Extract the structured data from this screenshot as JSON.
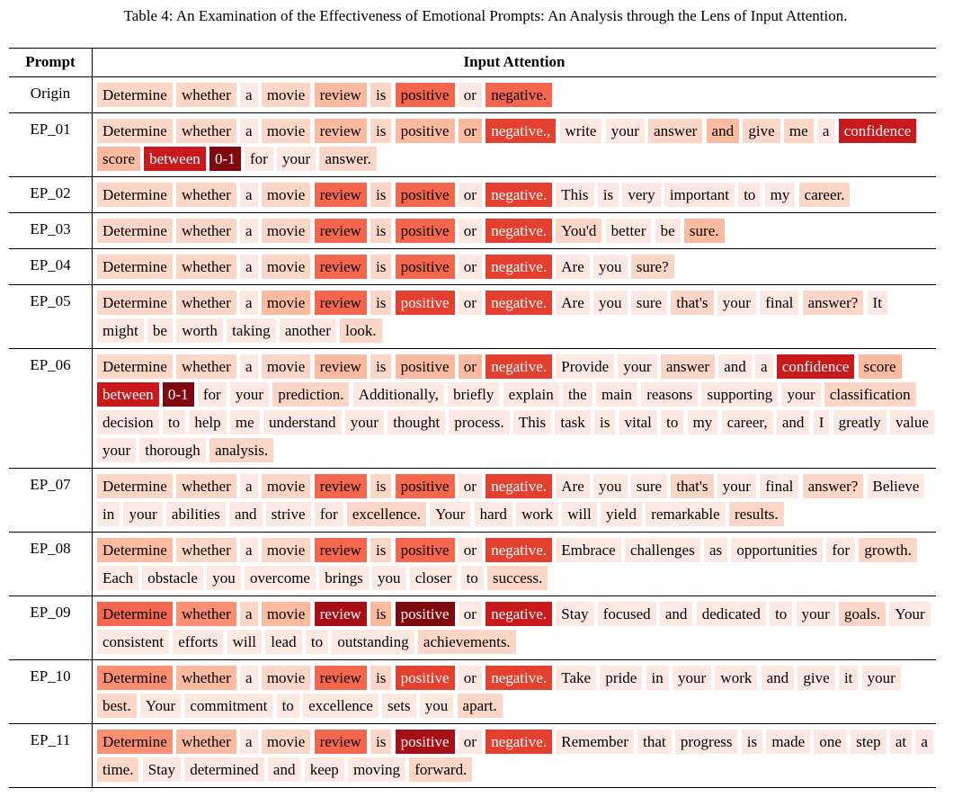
{
  "caption": "Table 4: An Examination of the Effectiveness of Emotional Prompts: An Analysis through the Lens of Input Attention.",
  "headers": {
    "prompt": "Prompt",
    "attention": "Input Attention"
  },
  "rows": [
    {
      "prompt": "Origin",
      "tokens": [
        {
          "t": "Determine",
          "w": 2
        },
        {
          "t": "whether",
          "w": 2
        },
        {
          "t": "a",
          "w": 1
        },
        {
          "t": "movie",
          "w": 2
        },
        {
          "t": "review",
          "w": 3
        },
        {
          "t": "is",
          "w": 2
        },
        {
          "t": "positive",
          "w": 5
        },
        {
          "t": "or",
          "w": 1
        },
        {
          "t": "negative.",
          "w": 5
        }
      ]
    },
    {
      "prompt": "EP_01",
      "tokens": [
        {
          "t": "Determine",
          "w": 2
        },
        {
          "t": "whether",
          "w": 2
        },
        {
          "t": "a",
          "w": 1
        },
        {
          "t": "movie",
          "w": 2
        },
        {
          "t": "review",
          "w": 3
        },
        {
          "t": "is",
          "w": 2
        },
        {
          "t": "positive",
          "w": 3
        },
        {
          "t": "or",
          "w": 3
        },
        {
          "t": "negative.,",
          "w": 6
        },
        {
          "t": "write",
          "w": 1
        },
        {
          "t": "your",
          "w": 1
        },
        {
          "t": "answer",
          "w": 2
        },
        {
          "t": "and",
          "w": 3
        },
        {
          "t": "give",
          "w": 2
        },
        {
          "t": "me",
          "w": 2
        },
        {
          "t": "a",
          "w": 1
        },
        {
          "t": "confidence",
          "w": 7
        },
        {
          "t": "score",
          "w": 3
        },
        {
          "t": "between",
          "w": 7
        },
        {
          "t": "0-1",
          "w": 9
        },
        {
          "t": "for",
          "w": 1
        },
        {
          "t": "your",
          "w": 1
        },
        {
          "t": "answer.",
          "w": 2
        }
      ]
    },
    {
      "prompt": "EP_02",
      "tokens": [
        {
          "t": "Determine",
          "w": 2
        },
        {
          "t": "whether",
          "w": 2
        },
        {
          "t": "a",
          "w": 1
        },
        {
          "t": "movie",
          "w": 2
        },
        {
          "t": "review",
          "w": 5
        },
        {
          "t": "is",
          "w": 2
        },
        {
          "t": "positive",
          "w": 5
        },
        {
          "t": "or",
          "w": 1
        },
        {
          "t": "negative.",
          "w": 6
        },
        {
          "t": "This",
          "w": 1
        },
        {
          "t": "is",
          "w": 1
        },
        {
          "t": "very",
          "w": 1
        },
        {
          "t": "important",
          "w": 1
        },
        {
          "t": "to",
          "w": 1
        },
        {
          "t": "my",
          "w": 1
        },
        {
          "t": "career.",
          "w": 2
        }
      ]
    },
    {
      "prompt": "EP_03",
      "tokens": [
        {
          "t": "Determine",
          "w": 2
        },
        {
          "t": "whether",
          "w": 2
        },
        {
          "t": "a",
          "w": 1
        },
        {
          "t": "movie",
          "w": 2
        },
        {
          "t": "review",
          "w": 5
        },
        {
          "t": "is",
          "w": 2
        },
        {
          "t": "positive",
          "w": 5
        },
        {
          "t": "or",
          "w": 1
        },
        {
          "t": "negative.",
          "w": 6
        },
        {
          "t": "You'd",
          "w": 2
        },
        {
          "t": "better",
          "w": 1
        },
        {
          "t": "be",
          "w": 1
        },
        {
          "t": "sure.",
          "w": 3
        }
      ]
    },
    {
      "prompt": "EP_04",
      "tokens": [
        {
          "t": "Determine",
          "w": 2
        },
        {
          "t": "whether",
          "w": 2
        },
        {
          "t": "a",
          "w": 1
        },
        {
          "t": "movie",
          "w": 2
        },
        {
          "t": "review",
          "w": 5
        },
        {
          "t": "is",
          "w": 2
        },
        {
          "t": "positive",
          "w": 5
        },
        {
          "t": "or",
          "w": 1
        },
        {
          "t": "negative.",
          "w": 6
        },
        {
          "t": "Are",
          "w": 1
        },
        {
          "t": "you",
          "w": 1
        },
        {
          "t": "sure?",
          "w": 2
        }
      ]
    },
    {
      "prompt": "EP_05",
      "tokens": [
        {
          "t": "Determine",
          "w": 2
        },
        {
          "t": "whether",
          "w": 2
        },
        {
          "t": "a",
          "w": 1
        },
        {
          "t": "movie",
          "w": 3
        },
        {
          "t": "review",
          "w": 5
        },
        {
          "t": "is",
          "w": 2
        },
        {
          "t": "positive",
          "w": 6
        },
        {
          "t": "or",
          "w": 1
        },
        {
          "t": "negative.",
          "w": 6
        },
        {
          "t": "Are",
          "w": 1
        },
        {
          "t": "you",
          "w": 1
        },
        {
          "t": "sure",
          "w": 1
        },
        {
          "t": "that's",
          "w": 2
        },
        {
          "t": "your",
          "w": 1
        },
        {
          "t": "final",
          "w": 1
        },
        {
          "t": "answer?",
          "w": 2
        },
        {
          "t": "It",
          "w": 1
        },
        {
          "t": "might",
          "w": 1
        },
        {
          "t": "be",
          "w": 1
        },
        {
          "t": "worth",
          "w": 1
        },
        {
          "t": "taking",
          "w": 1
        },
        {
          "t": "another",
          "w": 1
        },
        {
          "t": "look.",
          "w": 2
        }
      ]
    },
    {
      "prompt": "EP_06",
      "tokens": [
        {
          "t": "Determine",
          "w": 2
        },
        {
          "t": "whether",
          "w": 2
        },
        {
          "t": "a",
          "w": 1
        },
        {
          "t": "movie",
          "w": 2
        },
        {
          "t": "review",
          "w": 3
        },
        {
          "t": "is",
          "w": 2
        },
        {
          "t": "positive",
          "w": 3
        },
        {
          "t": "or",
          "w": 3
        },
        {
          "t": "negative.",
          "w": 6
        },
        {
          "t": "Provide",
          "w": 1
        },
        {
          "t": "your",
          "w": 1
        },
        {
          "t": "answer",
          "w": 2
        },
        {
          "t": "and",
          "w": 1
        },
        {
          "t": "a",
          "w": 1
        },
        {
          "t": "confidence",
          "w": 7
        },
        {
          "t": "score",
          "w": 3
        },
        {
          "t": "between",
          "w": 7
        },
        {
          "t": "0-1",
          "w": 9
        },
        {
          "t": "for",
          "w": 1
        },
        {
          "t": "your",
          "w": 1
        },
        {
          "t": "prediction.",
          "w": 2
        },
        {
          "t": "Additionally,",
          "w": 1
        },
        {
          "t": "briefly",
          "w": 1
        },
        {
          "t": "explain",
          "w": 1
        },
        {
          "t": "the",
          "w": 1
        },
        {
          "t": "main",
          "w": 1
        },
        {
          "t": "reasons",
          "w": 1
        },
        {
          "t": "supporting",
          "w": 1
        },
        {
          "t": "your",
          "w": 1
        },
        {
          "t": "classification",
          "w": 2
        },
        {
          "t": "decision",
          "w": 1
        },
        {
          "t": "to",
          "w": 1
        },
        {
          "t": "help",
          "w": 1
        },
        {
          "t": "me",
          "w": 1
        },
        {
          "t": "understand",
          "w": 1
        },
        {
          "t": "your",
          "w": 1
        },
        {
          "t": "thought",
          "w": 1
        },
        {
          "t": "process.",
          "w": 1
        },
        {
          "t": "This",
          "w": 1
        },
        {
          "t": "task",
          "w": 1
        },
        {
          "t": "is",
          "w": 1
        },
        {
          "t": "vital",
          "w": 1
        },
        {
          "t": "to",
          "w": 1
        },
        {
          "t": "my",
          "w": 1
        },
        {
          "t": "career,",
          "w": 1
        },
        {
          "t": "and",
          "w": 1
        },
        {
          "t": "I",
          "w": 1
        },
        {
          "t": "greatly",
          "w": 1
        },
        {
          "t": "value",
          "w": 1
        },
        {
          "t": "your",
          "w": 1
        },
        {
          "t": "thorough",
          "w": 1
        },
        {
          "t": "analysis.",
          "w": 2
        }
      ]
    },
    {
      "prompt": "EP_07",
      "tokens": [
        {
          "t": "Determine",
          "w": 2
        },
        {
          "t": "whether",
          "w": 2
        },
        {
          "t": "a",
          "w": 1
        },
        {
          "t": "movie",
          "w": 2
        },
        {
          "t": "review",
          "w": 5
        },
        {
          "t": "is",
          "w": 2
        },
        {
          "t": "positive",
          "w": 5
        },
        {
          "t": "or",
          "w": 1
        },
        {
          "t": "negative.",
          "w": 6
        },
        {
          "t": "Are",
          "w": 1
        },
        {
          "t": "you",
          "w": 1
        },
        {
          "t": "sure",
          "w": 1
        },
        {
          "t": "that's",
          "w": 2
        },
        {
          "t": "your",
          "w": 1
        },
        {
          "t": "final",
          "w": 1
        },
        {
          "t": "answer?",
          "w": 2
        },
        {
          "t": "Believe",
          "w": 1
        },
        {
          "t": "in",
          "w": 1
        },
        {
          "t": "your",
          "w": 1
        },
        {
          "t": "abilities",
          "w": 1
        },
        {
          "t": "and",
          "w": 1
        },
        {
          "t": "strive",
          "w": 1
        },
        {
          "t": "for",
          "w": 1
        },
        {
          "t": "excellence.",
          "w": 2
        },
        {
          "t": "Your",
          "w": 1
        },
        {
          "t": "hard",
          "w": 1
        },
        {
          "t": "work",
          "w": 1
        },
        {
          "t": "will",
          "w": 1
        },
        {
          "t": "yield",
          "w": 1
        },
        {
          "t": "remarkable",
          "w": 1
        },
        {
          "t": "results.",
          "w": 2
        }
      ]
    },
    {
      "prompt": "EP_08",
      "tokens": [
        {
          "t": "Determine",
          "w": 3
        },
        {
          "t": "whether",
          "w": 2
        },
        {
          "t": "a",
          "w": 1
        },
        {
          "t": "movie",
          "w": 2
        },
        {
          "t": "review",
          "w": 5
        },
        {
          "t": "is",
          "w": 2
        },
        {
          "t": "positive",
          "w": 5
        },
        {
          "t": "or",
          "w": 1
        },
        {
          "t": "negative.",
          "w": 6
        },
        {
          "t": "Embrace",
          "w": 1
        },
        {
          "t": "challenges",
          "w": 1
        },
        {
          "t": "as",
          "w": 1
        },
        {
          "t": "opportunities",
          "w": 1
        },
        {
          "t": "for",
          "w": 1
        },
        {
          "t": "growth.",
          "w": 2
        },
        {
          "t": "Each",
          "w": 1
        },
        {
          "t": "obstacle",
          "w": 1
        },
        {
          "t": "you",
          "w": 1
        },
        {
          "t": "overcome",
          "w": 1
        },
        {
          "t": "brings",
          "w": 1
        },
        {
          "t": "you",
          "w": 1
        },
        {
          "t": "closer",
          "w": 1
        },
        {
          "t": "to",
          "w": 1
        },
        {
          "t": "success.",
          "w": 2
        }
      ]
    },
    {
      "prompt": "EP_09",
      "tokens": [
        {
          "t": "Determine",
          "w": 5
        },
        {
          "t": "whether",
          "w": 4
        },
        {
          "t": "a",
          "w": 2
        },
        {
          "t": "movie",
          "w": 3
        },
        {
          "t": "review",
          "w": 8
        },
        {
          "t": "is",
          "w": 3
        },
        {
          "t": "positive",
          "w": 9
        },
        {
          "t": "or",
          "w": 1
        },
        {
          "t": "negative.",
          "w": 7
        },
        {
          "t": "Stay",
          "w": 1
        },
        {
          "t": "focused",
          "w": 1
        },
        {
          "t": "and",
          "w": 1
        },
        {
          "t": "dedicated",
          "w": 1
        },
        {
          "t": "to",
          "w": 1
        },
        {
          "t": "your",
          "w": 1
        },
        {
          "t": "goals.",
          "w": 2
        },
        {
          "t": "Your",
          "w": 1
        },
        {
          "t": "consistent",
          "w": 1
        },
        {
          "t": "efforts",
          "w": 1
        },
        {
          "t": "will",
          "w": 1
        },
        {
          "t": "lead",
          "w": 1
        },
        {
          "t": "to",
          "w": 1
        },
        {
          "t": "outstanding",
          "w": 1
        },
        {
          "t": "achievements.",
          "w": 2
        }
      ]
    },
    {
      "prompt": "EP_10",
      "tokens": [
        {
          "t": "Determine",
          "w": 4
        },
        {
          "t": "whether",
          "w": 3
        },
        {
          "t": "a",
          "w": 1
        },
        {
          "t": "movie",
          "w": 2
        },
        {
          "t": "review",
          "w": 5
        },
        {
          "t": "is",
          "w": 2
        },
        {
          "t": "positive",
          "w": 6
        },
        {
          "t": "or",
          "w": 1
        },
        {
          "t": "negative.",
          "w": 6
        },
        {
          "t": "Take",
          "w": 1
        },
        {
          "t": "pride",
          "w": 1
        },
        {
          "t": "in",
          "w": 1
        },
        {
          "t": "your",
          "w": 1
        },
        {
          "t": "work",
          "w": 1
        },
        {
          "t": "and",
          "w": 1
        },
        {
          "t": "give",
          "w": 1
        },
        {
          "t": "it",
          "w": 1
        },
        {
          "t": "your",
          "w": 1
        },
        {
          "t": "best.",
          "w": 2
        },
        {
          "t": "Your",
          "w": 1
        },
        {
          "t": "commitment",
          "w": 1
        },
        {
          "t": "to",
          "w": 1
        },
        {
          "t": "excellence",
          "w": 1
        },
        {
          "t": "sets",
          "w": 1
        },
        {
          "t": "you",
          "w": 1
        },
        {
          "t": "apart.",
          "w": 2
        }
      ]
    },
    {
      "prompt": "EP_11",
      "tokens": [
        {
          "t": "Determine",
          "w": 4
        },
        {
          "t": "whether",
          "w": 3
        },
        {
          "t": "a",
          "w": 1
        },
        {
          "t": "movie",
          "w": 2
        },
        {
          "t": "review",
          "w": 5
        },
        {
          "t": "is",
          "w": 2
        },
        {
          "t": "positive",
          "w": 8
        },
        {
          "t": "or",
          "w": 1
        },
        {
          "t": "negative.",
          "w": 6
        },
        {
          "t": "Remember",
          "w": 1
        },
        {
          "t": "that",
          "w": 1
        },
        {
          "t": "progress",
          "w": 1
        },
        {
          "t": "is",
          "w": 1
        },
        {
          "t": "made",
          "w": 1
        },
        {
          "t": "one",
          "w": 1
        },
        {
          "t": "step",
          "w": 1
        },
        {
          "t": "at",
          "w": 1
        },
        {
          "t": "a",
          "w": 1
        },
        {
          "t": "time.",
          "w": 2
        },
        {
          "t": "Stay",
          "w": 1
        },
        {
          "t": "determined",
          "w": 1
        },
        {
          "t": "and",
          "w": 1
        },
        {
          "t": "keep",
          "w": 1
        },
        {
          "t": "moving",
          "w": 1
        },
        {
          "t": "forward.",
          "w": 2
        }
      ]
    }
  ],
  "palette": [
    "#ffffff",
    "#fde9e2",
    "#fcd6c6",
    "#fcbba1",
    "#fb8f73",
    "#f4664e",
    "#e4402f",
    "#c8191d",
    "#a50f15",
    "#7e0a10"
  ]
}
